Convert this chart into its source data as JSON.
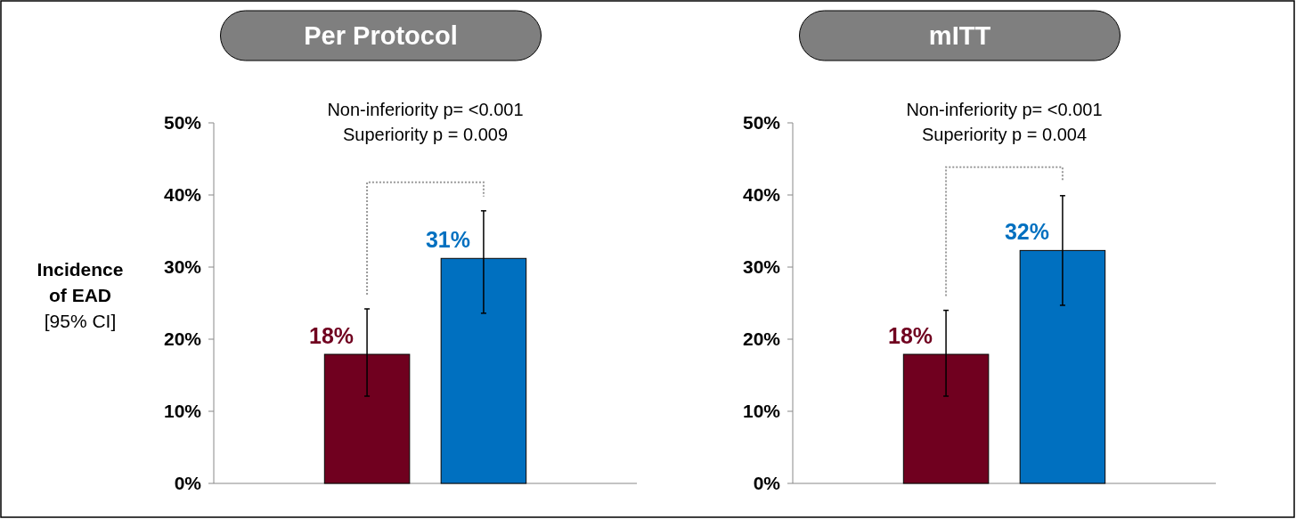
{
  "chart_data": [
    {
      "type": "bar",
      "title": "Per Protocol",
      "ylabel": "Incidence of EAD [95% CI]",
      "annotations": [
        "Non-inferiority p= <0.001",
        "Superiority p = 0.009"
      ],
      "categories": [
        null,
        null
      ],
      "values": [
        17.9,
        31.2
      ],
      "colors": [
        "#70001f",
        "#0070c0"
      ],
      "errors": [
        [
          12.1,
          24.2
        ],
        [
          23.6,
          37.8
        ]
      ],
      "value_labels": [
        "18%",
        "31%"
      ],
      "ylim": [
        0,
        50
      ],
      "yticks": [
        {
          "value": 0,
          "label": "0%"
        },
        {
          "value": 10,
          "label": "10%"
        },
        {
          "value": 20,
          "label": "20%"
        },
        {
          "value": 30,
          "label": "30%"
        },
        {
          "value": 40,
          "label": "40%"
        },
        {
          "value": 50,
          "label": "50%"
        }
      ]
    },
    {
      "type": "bar",
      "title": "mITT",
      "annotations": [
        "Non-inferiority p= <0.001",
        "Superiority p = 0.004"
      ],
      "categories": [
        null,
        null
      ],
      "values": [
        17.9,
        32.3
      ],
      "colors": [
        "#70001f",
        "#0070c0"
      ],
      "errors": [
        [
          12.1,
          24.0
        ],
        [
          24.7,
          39.9
        ]
      ],
      "value_labels": [
        "18%",
        "32%"
      ],
      "ylim": [
        0,
        50
      ],
      "yticks": [
        {
          "value": 0,
          "label": "0%"
        },
        {
          "value": 10,
          "label": "10%"
        },
        {
          "value": 20,
          "label": "20%"
        },
        {
          "value": 30,
          "label": "30%"
        },
        {
          "value": 40,
          "label": "40%"
        },
        {
          "value": 50,
          "label": "50%"
        }
      ]
    }
  ]
}
